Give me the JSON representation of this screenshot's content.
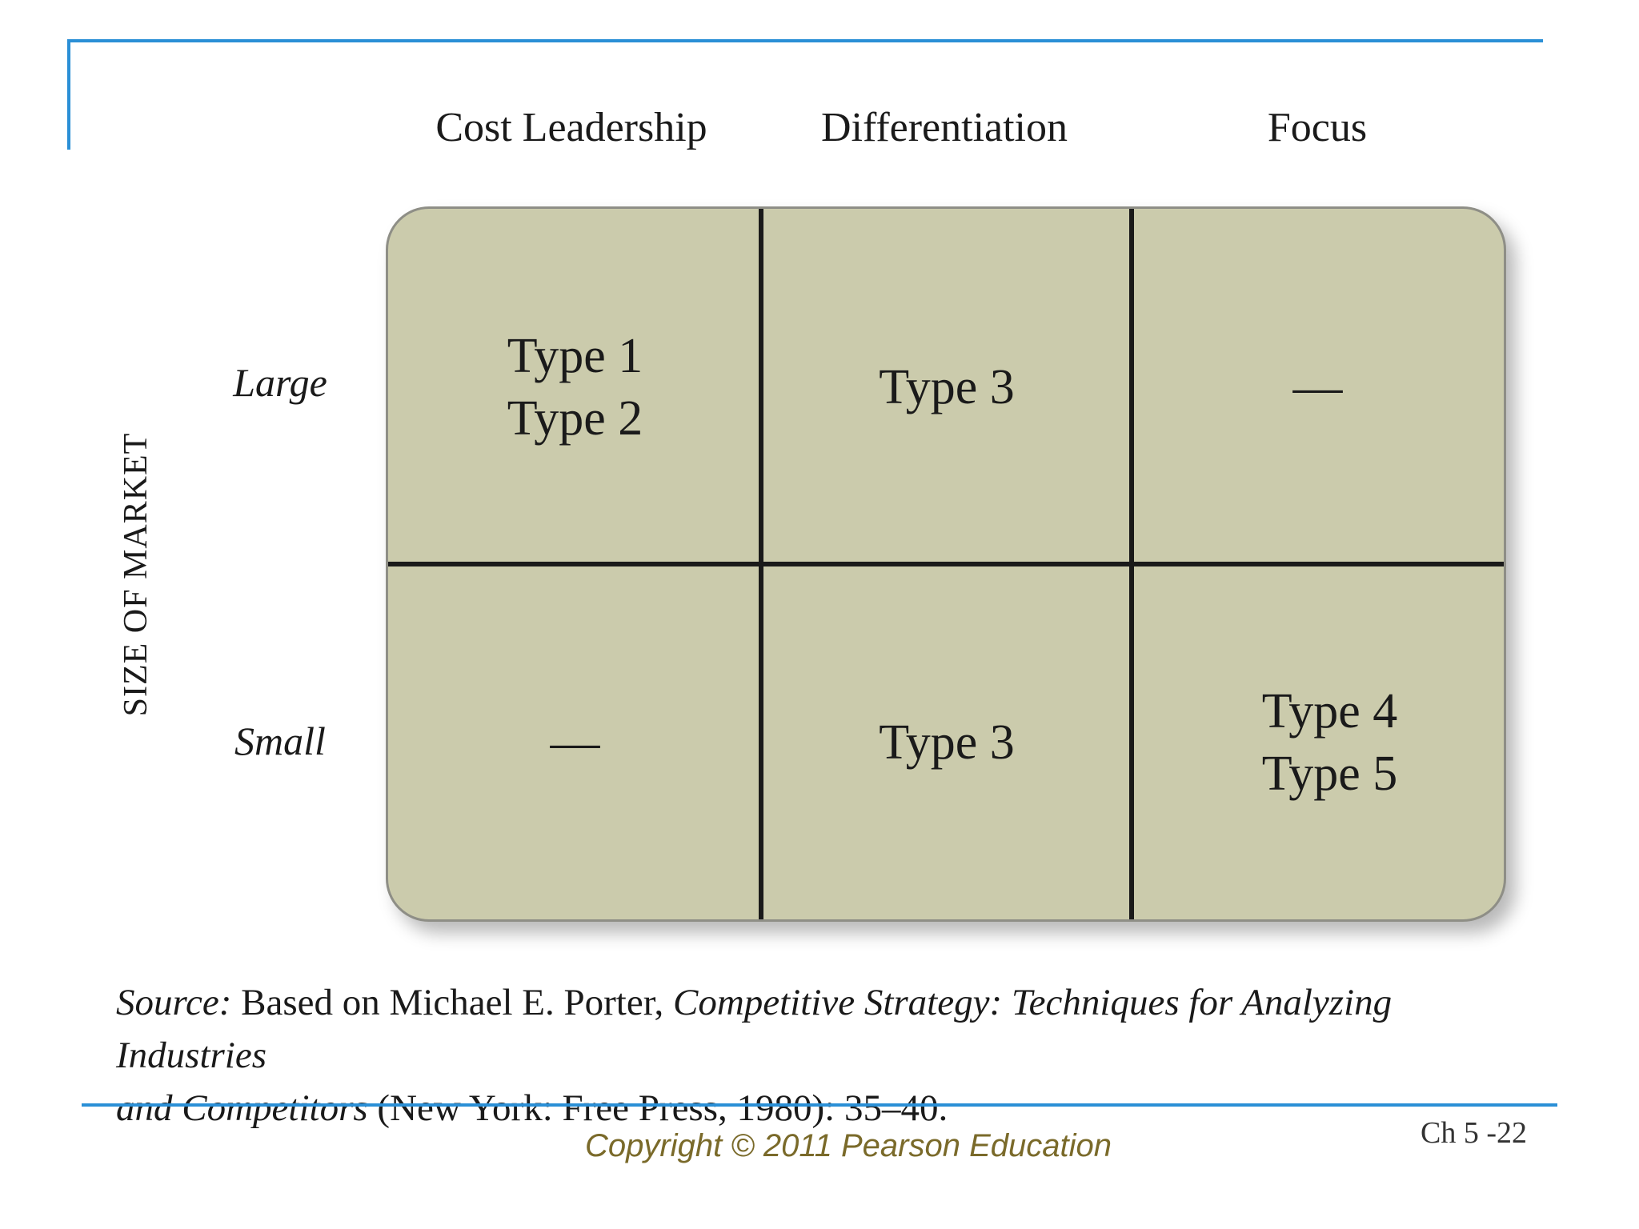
{
  "columns": [
    "Cost Leadership",
    "Differentiation",
    "Focus"
  ],
  "y_axis_title": "SIZE OF MARKET",
  "rows": [
    {
      "label": "Large",
      "cells": [
        [
          "Type 1",
          "Type 2"
        ],
        [
          "Type 3"
        ],
        [
          "—"
        ]
      ]
    },
    {
      "label": "Small",
      "cells": [
        [
          "—"
        ],
        [
          "Type 3"
        ],
        [
          "Type 4",
          "Type 5"
        ]
      ]
    }
  ],
  "source": {
    "prefix": "Source:",
    "text1": " Based on Michael E. Porter, ",
    "book_title_line1": "Competitive Strategy: Techniques for Analyzing Industries",
    "book_title_line2": "and Competitors",
    "text2": " (New York: Free Press, 1980): 35–40."
  },
  "footer": {
    "copyright": "Copyright © 2011 Pearson Education",
    "slide_number": "Ch 5 -22"
  },
  "colors": {
    "accent_rule": "#2a8fd6",
    "grid_fill": "#cbcbac",
    "copyright_text": "#7a6a2a"
  }
}
